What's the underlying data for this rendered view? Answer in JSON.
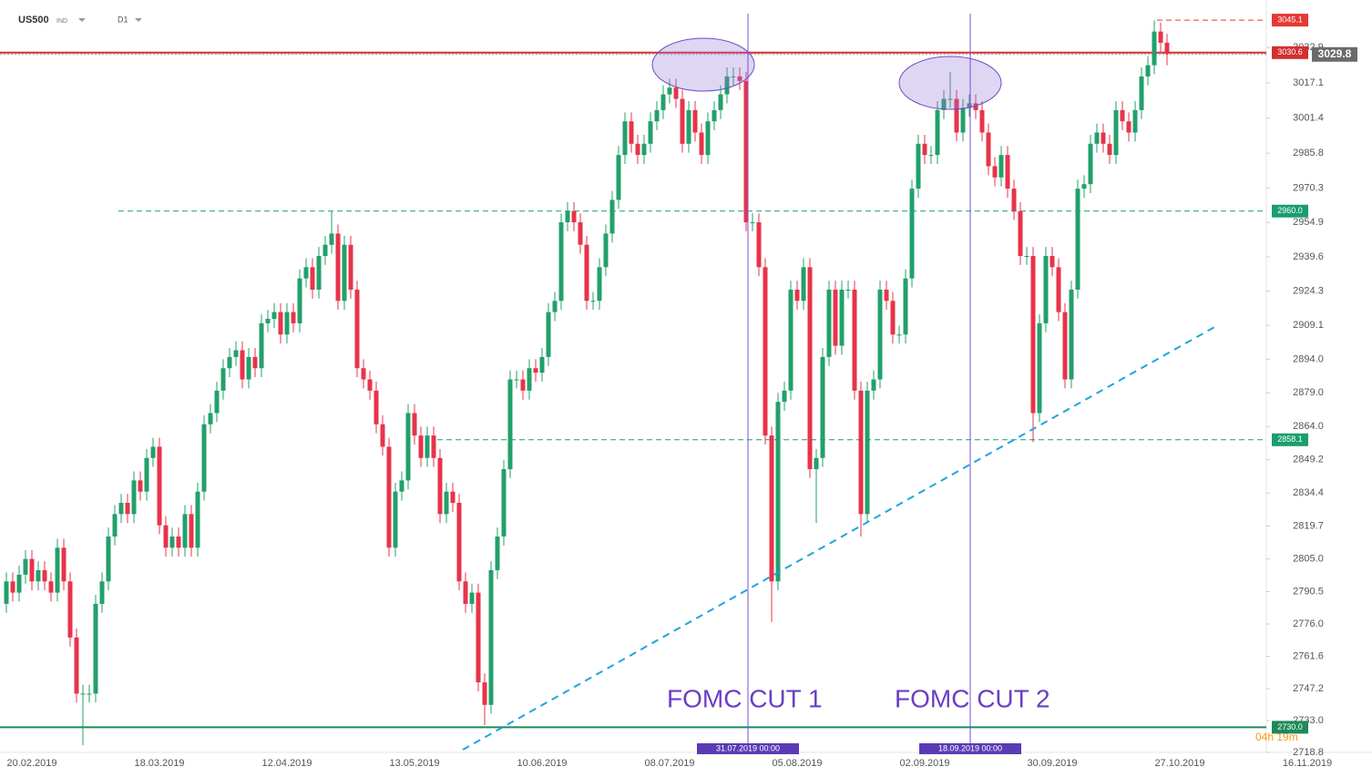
{
  "chart_data": {
    "type": "candlestick",
    "title": "US500",
    "subtitle": "IND",
    "timeframe": "D1",
    "up_color": "#22a06b",
    "down_color": "#e8334a",
    "grid": false,
    "ylim": [
      2718.8,
      3050
    ],
    "yticks": [
      2718.8,
      {
        "value": 2733,
        "label": "2733.0"
      },
      2747.2,
      2761.6,
      {
        "value": 2776,
        "label": "2776.0"
      },
      2790.5,
      {
        "value": 2805,
        "label": "2805.0"
      },
      2819.7,
      2834.4,
      2849.2,
      {
        "value": 2864,
        "label": "2864.0"
      },
      {
        "value": 2879,
        "label": "2879.0"
      },
      {
        "value": 2894,
        "label": "2894.0"
      },
      2909.1,
      2924.3,
      2939.6,
      2954.9,
      2970.3,
      2985.8,
      3001.4,
      3017.1,
      3032.9
    ],
    "categories": [
      null,
      null,
      null,
      null,
      "20.02.2019",
      null,
      null,
      null,
      null,
      null,
      null,
      null,
      null,
      null,
      null,
      null,
      null,
      null,
      null,
      null,
      null,
      null,
      null,
      null,
      "18.03.2019",
      null,
      null,
      null,
      null,
      null,
      null,
      null,
      null,
      null,
      null,
      null,
      null,
      null,
      null,
      null,
      null,
      null,
      null,
      null,
      "12.04.2019",
      null,
      null,
      null,
      null,
      null,
      null,
      null,
      null,
      null,
      null,
      null,
      null,
      null,
      null,
      null,
      null,
      null,
      null,
      null,
      "13.05.2019",
      null,
      null,
      null,
      null,
      null,
      null,
      null,
      null,
      null,
      null,
      null,
      null,
      null,
      null,
      null,
      null,
      null,
      null,
      null,
      "10.06.2019",
      null,
      null,
      null,
      null,
      null,
      null,
      null,
      null,
      null,
      null,
      null,
      null,
      null,
      null,
      null,
      null,
      null,
      null,
      null,
      "08.07.2019",
      null,
      null,
      null,
      null,
      null,
      null,
      null,
      null,
      null,
      null,
      null,
      null,
      null,
      null,
      null,
      null,
      null,
      null,
      null,
      "05.08.2019",
      null,
      null,
      null,
      null,
      null,
      null,
      null,
      null,
      null,
      null,
      null,
      null,
      null,
      null,
      null,
      null,
      null,
      null,
      null,
      "02.09.2019",
      null,
      null,
      null,
      null,
      null,
      null,
      null,
      null,
      null,
      null,
      null,
      null,
      null,
      null,
      null,
      null,
      null,
      null,
      null,
      "30.09.2019",
      null,
      null,
      null,
      null,
      null,
      null,
      null,
      null,
      null,
      null,
      null,
      null,
      null,
      null,
      null,
      null,
      null,
      null,
      null,
      "27.10.2019",
      null,
      null,
      null,
      null,
      null,
      null,
      null,
      null,
      null,
      null,
      null,
      null,
      null,
      null,
      null,
      null,
      null,
      null,
      null,
      "16.11.2019"
    ],
    "open": [
      2785,
      2795,
      2790,
      2798,
      2805,
      2795,
      2800,
      2795,
      2790,
      2810,
      2795,
      2770,
      2745,
      2745,
      2745,
      2785,
      2795,
      2815,
      2825,
      2830,
      2825,
      2840,
      2835,
      2850,
      2855,
      2820,
      2810,
      2815,
      2810,
      2825,
      2810,
      2835,
      2865,
      2870,
      2880,
      2890,
      2895,
      2898,
      2885,
      2895,
      2890,
      2910,
      2912,
      2915,
      2905,
      2915,
      2910,
      2930,
      2935,
      2925,
      2940,
      2945,
      2950,
      2920,
      2945,
      2925,
      2890,
      2885,
      2880,
      2865,
      2855,
      2810,
      2835,
      2840,
      2870,
      2860,
      2850,
      2860,
      2850,
      2825,
      2835,
      2830,
      2795,
      2785,
      2790,
      2750,
      2740,
      2800,
      2815,
      2845,
      2885,
      2885,
      2880,
      2890,
      2888,
      2895,
      2915,
      2920,
      2955,
      2960,
      2955,
      2945,
      2920,
      2920,
      2935,
      2950,
      2965,
      2985,
      3000,
      2990,
      2985,
      2990,
      3000,
      3005,
      3012,
      3015,
      3010,
      2990,
      3005,
      2995,
      2985,
      3000,
      3005,
      3012,
      3020,
      3020,
      3018,
      2955,
      2955,
      2935,
      2860,
      2795,
      2875,
      2880,
      2925,
      2920,
      2935,
      2845,
      2850,
      2895,
      2925,
      2900,
      2925,
      2925,
      2880,
      2825,
      2880,
      2885,
      2925,
      2920,
      2905,
      2905,
      2930,
      2970,
      2990,
      2985,
      2985,
      3005,
      3010,
      3010,
      2995,
      3006,
      3008,
      3005,
      2995,
      2980,
      2975,
      2985,
      2970,
      2960,
      2940,
      2940,
      2870,
      2910,
      2940,
      2935,
      2915,
      2885,
      2925,
      2970,
      2972,
      2990,
      2995,
      2990,
      2985,
      3005,
      3000,
      2995,
      3005,
      3020,
      3025,
      3040,
      3035,
      null,
      null,
      null,
      null,
      null,
      null,
      null,
      null,
      null,
      null,
      null,
      null,
      null,
      null,
      null,
      null,
      null,
      null,
      null,
      null,
      null,
      null
    ],
    "high": [
      2799,
      2799,
      2802,
      2809,
      2809,
      2804,
      2804,
      2799,
      2814,
      2814,
      2799,
      2774,
      2749,
      2749,
      2789,
      2799,
      2819,
      2829,
      2834,
      2834,
      2844,
      2844,
      2854,
      2859,
      2859,
      2824,
      2819,
      2819,
      2829,
      2829,
      2839,
      2869,
      2874,
      2884,
      2894,
      2899,
      2902,
      2902,
      2899,
      2899,
      2914,
      2916,
      2919,
      2919,
      2919,
      2919,
      2934,
      2939,
      2939,
      2944,
      2949,
      2960,
      2954,
      2949,
      2949,
      2929,
      2894,
      2889,
      2884,
      2869,
      2859,
      2839,
      2844,
      2874,
      2874,
      2864,
      2864,
      2864,
      2854,
      2839,
      2839,
      2834,
      2799,
      2794,
      2794,
      2754,
      2804,
      2819,
      2849,
      2889,
      2889,
      2889,
      2894,
      2894,
      2899,
      2919,
      2924,
      2959,
      2964,
      2964,
      2959,
      2949,
      2924,
      2939,
      2954,
      2969,
      2989,
      3004,
      3004,
      2994,
      2994,
      3004,
      3009,
      3016,
      3019,
      3019,
      3014,
      3009,
      3009,
      2999,
      3004,
      3009,
      3016,
      3024,
      3024,
      3024,
      3022,
      2959,
      2959,
      2939,
      2864,
      2879,
      2884,
      2929,
      2929,
      2939,
      2939,
      2854,
      2899,
      2929,
      2929,
      2929,
      2929,
      2929,
      2884,
      2884,
      2889,
      2929,
      2929,
      2924,
      2909,
      2934,
      2974,
      2994,
      2994,
      2989,
      3009,
      3014,
      3022,
      3014,
      3010,
      3012,
      3012,
      3009,
      2999,
      2984,
      2989,
      2989,
      2974,
      2964,
      2944,
      2944,
      2914,
      2944,
      2944,
      2939,
      2919,
      2929,
      2974,
      2976,
      2994,
      2999,
      2999,
      2994,
      3009,
      3009,
      3004,
      3009,
      3024,
      3029,
      3045,
      3044,
      3039,
      null,
      null,
      null,
      null,
      null,
      null,
      null,
      null,
      null,
      null,
      null,
      null,
      null,
      null,
      null,
      null,
      null,
      null,
      null,
      null,
      null,
      null
    ],
    "low": [
      2781,
      2786,
      2786,
      2794,
      2791,
      2791,
      2791,
      2786,
      2786,
      2791,
      2766,
      2741,
      2722,
      2741,
      2741,
      2781,
      2791,
      2811,
      2821,
      2821,
      2821,
      2831,
      2831,
      2846,
      2816,
      2806,
      2806,
      2806,
      2806,
      2806,
      2806,
      2831,
      2861,
      2866,
      2876,
      2886,
      2891,
      2881,
      2881,
      2886,
      2886,
      2906,
      2908,
      2901,
      2901,
      2906,
      2906,
      2926,
      2921,
      2921,
      2936,
      2941,
      2916,
      2916,
      2921,
      2886,
      2881,
      2876,
      2861,
      2851,
      2806,
      2806,
      2831,
      2836,
      2856,
      2846,
      2846,
      2846,
      2821,
      2821,
      2826,
      2791,
      2781,
      2781,
      2746,
      2731,
      2736,
      2796,
      2811,
      2841,
      2881,
      2876,
      2876,
      2884,
      2884,
      2891,
      2911,
      2916,
      2951,
      2951,
      2941,
      2916,
      2916,
      2916,
      2931,
      2946,
      2961,
      2981,
      2986,
      2981,
      2981,
      2986,
      2996,
      3001,
      3008,
      3006,
      2986,
      2986,
      2991,
      2981,
      2981,
      2996,
      3001,
      3008,
      3016,
      3014,
      2951,
      2951,
      2931,
      2856,
      2777,
      2791,
      2871,
      2876,
      2916,
      2916,
      2841,
      2821,
      2846,
      2891,
      2896,
      2896,
      2921,
      2876,
      2815,
      2821,
      2876,
      2881,
      2916,
      2901,
      2901,
      2901,
      2926,
      2966,
      2981,
      2981,
      2981,
      3001,
      3006,
      2991,
      2991,
      3002,
      3001,
      2991,
      2976,
      2971,
      2971,
      2966,
      2956,
      2936,
      2936,
      2857,
      2866,
      2906,
      2931,
      2911,
      2881,
      2881,
      2921,
      2966,
      2968,
      2986,
      2986,
      2981,
      2981,
      2996,
      2991,
      2991,
      3001,
      3016,
      3021,
      3031,
      3025,
      null,
      null,
      null,
      null,
      null,
      null,
      null,
      null,
      null,
      null,
      null,
      null,
      null,
      null,
      null,
      null,
      null,
      null,
      null,
      null,
      null,
      null
    ],
    "close": [
      2795,
      2790,
      2798,
      2805,
      2795,
      2800,
      2795,
      2790,
      2810,
      2795,
      2770,
      2745,
      2745,
      2745,
      2785,
      2795,
      2815,
      2825,
      2830,
      2825,
      2840,
      2835,
      2850,
      2855,
      2820,
      2810,
      2815,
      2810,
      2825,
      2810,
      2835,
      2865,
      2870,
      2880,
      2890,
      2895,
      2898,
      2885,
      2895,
      2890,
      2910,
      2912,
      2915,
      2905,
      2915,
      2910,
      2930,
      2935,
      2925,
      2940,
      2945,
      2950,
      2920,
      2945,
      2925,
      2890,
      2885,
      2880,
      2865,
      2855,
      2810,
      2835,
      2840,
      2870,
      2860,
      2850,
      2860,
      2850,
      2825,
      2835,
      2830,
      2795,
      2785,
      2790,
      2750,
      2740,
      2800,
      2815,
      2845,
      2885,
      2885,
      2880,
      2890,
      2888,
      2895,
      2915,
      2920,
      2955,
      2960,
      2955,
      2945,
      2920,
      2920,
      2935,
      2950,
      2965,
      2985,
      3000,
      2990,
      2985,
      2990,
      3000,
      3005,
      3012,
      3015,
      3010,
      2990,
      3005,
      2995,
      2985,
      3000,
      3005,
      3012,
      3020,
      3020,
      3018,
      2955,
      2955,
      2935,
      2860,
      2795,
      2875,
      2880,
      2925,
      2920,
      2935,
      2845,
      2850,
      2895,
      2925,
      2900,
      2925,
      2925,
      2880,
      2825,
      2880,
      2885,
      2925,
      2920,
      2905,
      2905,
      2930,
      2970,
      2990,
      2985,
      2985,
      3005,
      3010,
      3010,
      2995,
      3006,
      3008,
      3005,
      2995,
      2980,
      2975,
      2985,
      2970,
      2960,
      2940,
      2940,
      2870,
      2910,
      2940,
      2935,
      2915,
      2885,
      2925,
      2970,
      2972,
      2990,
      2995,
      2990,
      2985,
      3005,
      3000,
      2995,
      3005,
      3020,
      3025,
      3040,
      3035,
      3030,
      null,
      null,
      null,
      null,
      null,
      null,
      null,
      null,
      null,
      null,
      null,
      null,
      null,
      null,
      null,
      null,
      null,
      null,
      null,
      null,
      null,
      null
    ],
    "levels": [
      {
        "value": 3045.1,
        "label": "3045.1",
        "color": "#e53935",
        "style": "dashed"
      },
      {
        "value": 3030.6,
        "label": "3030.6",
        "color": "#d32f2f",
        "style": "solid"
      },
      {
        "value": 2960,
        "label": "2960.0",
        "color": "#1a9e6e",
        "style": "dashed"
      },
      {
        "value": 2858.1,
        "label": "2858.1",
        "color": "#1a9e6e",
        "style": "dashed"
      },
      {
        "value": 2730,
        "label": "2730.0",
        "color": "#1e8a5a",
        "style": "solid"
      }
    ],
    "last_price": {
      "value": 3029.8,
      "color": "#6b6b6b"
    },
    "events": [
      {
        "label": "FOMC CUT 1",
        "date": "31.07.2019 00:00"
      },
      {
        "label": "FOMC CUT 2",
        "date": "18.09.2019 00:00"
      }
    ],
    "countdown": "04h 19m"
  }
}
